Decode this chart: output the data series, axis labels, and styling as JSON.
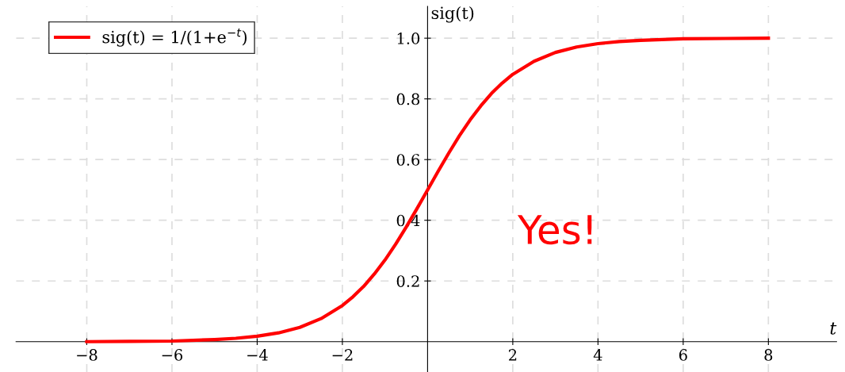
{
  "chart_data": {
    "type": "line",
    "x": [
      -8,
      -7,
      -6,
      -5,
      -4.5,
      -4,
      -3.5,
      -3,
      -2.5,
      -2,
      -1.75,
      -1.5,
      -1.25,
      -1,
      -0.75,
      -0.5,
      -0.25,
      0,
      0.25,
      0.5,
      0.75,
      1,
      1.25,
      1.5,
      1.75,
      2,
      2.5,
      3,
      3.5,
      4,
      4.5,
      5,
      6,
      7,
      8
    ],
    "series": [
      {
        "name": "sig(t) = 1/(1+e$^{−t}$)",
        "color": "#ff0000",
        "values": [
          0.0,
          0.001,
          0.002,
          0.007,
          0.011,
          0.018,
          0.029,
          0.047,
          0.076,
          0.119,
          0.148,
          0.182,
          0.223,
          0.269,
          0.321,
          0.378,
          0.438,
          0.5,
          0.562,
          0.622,
          0.679,
          0.731,
          0.777,
          0.818,
          0.852,
          0.881,
          0.924,
          0.953,
          0.971,
          0.982,
          0.989,
          0.993,
          0.998,
          0.999,
          1.0
        ]
      }
    ],
    "xlabel": "t",
    "ylabel": "sig(t)",
    "xlim": [
      -9.66,
      9.6
    ],
    "ylim": [
      -0.1,
      1.105
    ],
    "xticks": [
      {
        "value": -8,
        "label": "−8"
      },
      {
        "value": -6,
        "label": "−6"
      },
      {
        "value": -4,
        "label": "−4"
      },
      {
        "value": -2,
        "label": "−2"
      },
      2,
      4,
      6,
      8
    ],
    "yticks": [
      0.2,
      0.4,
      0.6,
      0.8,
      {
        "value": 1,
        "label": "1.0"
      }
    ],
    "annotations": [
      "Yes!"
    ],
    "grid": true,
    "legend": "top left",
    "marker": "none",
    "line_style": "solid"
  }
}
